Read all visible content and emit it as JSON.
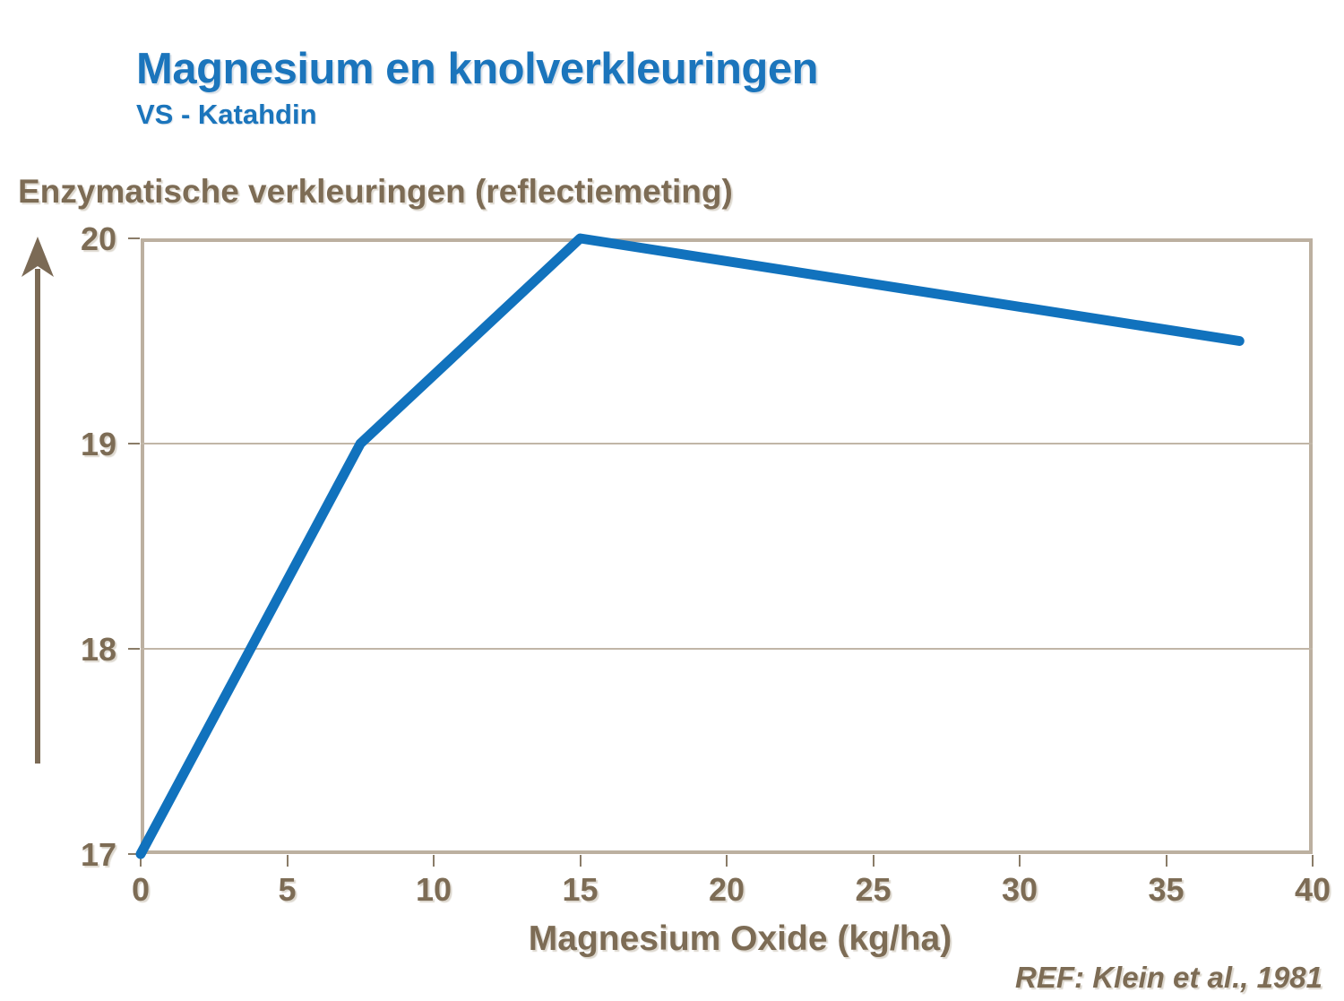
{
  "page": {
    "title": "Magnesium en knolverkleuringen",
    "subtitle": "VS - Katahdin",
    "reference": "REF: Klein et al., 1981"
  },
  "colors": {
    "title_blue": "#1B75BC",
    "line_blue": "#1172BD",
    "text_brown": "#7D6C55",
    "axis_frame_tan": "#BCB0A0",
    "gridline_tan": "#C1B6A7",
    "tick_brown": "#8A7C68",
    "arrow_brown": "#7B6A55"
  },
  "chart_data": {
    "type": "line",
    "title": "",
    "ylabel": "Enzymatische verkleuringen (reflectiemeting)",
    "xlabel": "Magnesium Oxide (kg/ha)",
    "series": [
      {
        "name": "VS - Katahdin",
        "x": [
          0,
          7.5,
          15,
          37.5
        ],
        "y": [
          17,
          19,
          20,
          19.5
        ]
      }
    ],
    "xlim": [
      0,
      40
    ],
    "ylim": [
      17,
      20
    ],
    "xticks": [
      0,
      5,
      10,
      15,
      20,
      25,
      30,
      35,
      40
    ],
    "yticks": [
      17,
      18,
      19,
      20
    ],
    "grid": true,
    "legend_position": "none"
  }
}
